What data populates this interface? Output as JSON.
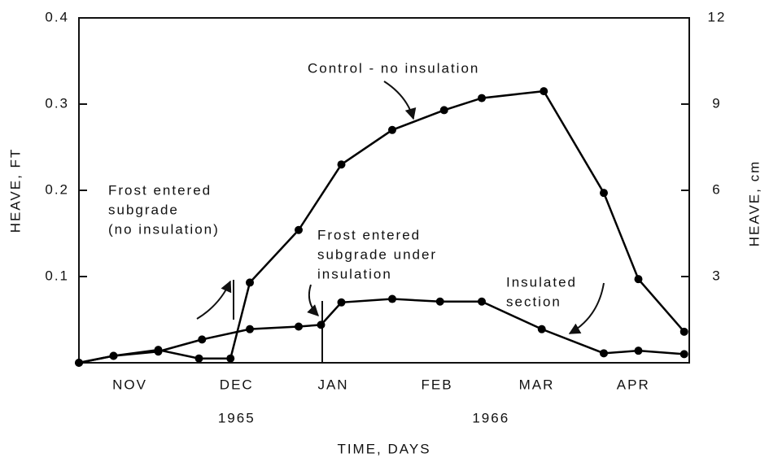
{
  "chart_data": {
    "type": "line",
    "xlabel": "TIME, DAYS",
    "ylabel": "HEAVE, FT",
    "y2label": "HEAVE, cm",
    "xlim": [
      0,
      6
    ],
    "xticks": [
      {
        "value": 0.5,
        "label": "NOV"
      },
      {
        "value": 1.55,
        "label": "DEC"
      },
      {
        "value": 2.5,
        "label": "JAN"
      },
      {
        "value": 3.52,
        "label": "FEB"
      },
      {
        "value": 4.5,
        "label": "MAR"
      },
      {
        "value": 5.45,
        "label": "APR"
      }
    ],
    "year_labels": [
      {
        "value": 1.55,
        "label": "1965"
      },
      {
        "value": 4.05,
        "label": "1966"
      }
    ],
    "ylim": [
      0,
      0.4
    ],
    "yticks": [
      0.1,
      0.2,
      0.3,
      0.4
    ],
    "y2lim": [
      0,
      12
    ],
    "y2ticks": [
      3,
      6,
      9,
      12
    ],
    "series": [
      {
        "color": "#000000",
        "x": [
          0,
          0.34,
          0.78,
          1.18,
          1.49,
          1.68,
          2.16,
          2.58,
          3.08,
          3.59,
          3.96,
          4.57,
          5.16,
          5.5,
          5.95
        ],
        "values": [
          0,
          0.008,
          0.015,
          0.005,
          0.005,
          0.093,
          0.154,
          0.23,
          0.27,
          0.293,
          0.307,
          0.315,
          0.197,
          0.097,
          0.036
        ]
      },
      {
        "color": "#000000",
        "x": [
          0,
          0.34,
          0.78,
          1.21,
          1.68,
          2.16,
          2.38,
          2.58,
          3.08,
          3.55,
          3.96,
          4.55,
          5.16,
          5.5,
          5.95
        ],
        "values": [
          0,
          0.008,
          0.013,
          0.027,
          0.039,
          0.042,
          0.044,
          0.07,
          0.074,
          0.071,
          0.071,
          0.039,
          0.011,
          0.014,
          0.01
        ]
      }
    ],
    "annotations": [
      {
        "text": [
          "Control - no insulation"
        ]
      },
      {
        "text": [
          "Frost entered",
          "subgrade",
          "(no insulation)"
        ]
      },
      {
        "text": [
          "Frost entered",
          "subgrade under",
          "insulation"
        ]
      },
      {
        "text": [
          "Insulated",
          "section"
        ]
      }
    ]
  }
}
